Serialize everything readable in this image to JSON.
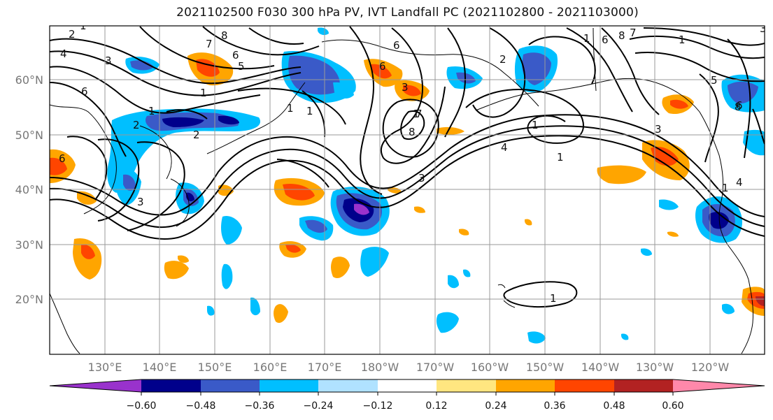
{
  "title": "2021102500 F030 300 hPa PV, IVT Landfall PC (2021102800 - 2021103000)",
  "lat_labels": [
    "60°N",
    "50°N",
    "40°N",
    "30°N",
    "20°N"
  ],
  "lon_labels": [
    "130°E",
    "140°E",
    "150°E",
    "160°E",
    "170°E",
    "180°W",
    "170°W",
    "160°W",
    "150°W",
    "140°W",
    "130°W",
    "120°W"
  ],
  "colorbar": {
    "colors": [
      "#9932cc",
      "#00008b",
      "#3a5ac8",
      "#00bfff",
      "#b0e2ff",
      "#ffffff",
      "#ffe680",
      "#ffa500",
      "#ff4500",
      "#b22222",
      "#ff88aa"
    ],
    "tick_labels": [
      "−0.60",
      "−0.48",
      "−0.36",
      "−0.24",
      "−0.12",
      "0.12",
      "0.24",
      "0.36",
      "0.48",
      "0.60"
    ]
  },
  "contour_labels": [
    "2",
    "1",
    "4",
    "3",
    "6",
    "8",
    "7",
    "6",
    "5",
    "1",
    "2",
    "3",
    "1",
    "6",
    "1",
    "2",
    "1",
    "6",
    "8",
    "7",
    "8",
    "1",
    "4",
    "1",
    "3",
    "1",
    "1",
    "6",
    "8",
    "2",
    "3",
    "1",
    "5",
    "7",
    "1",
    "1",
    "6",
    "3",
    "3",
    "6",
    "4"
  ]
}
